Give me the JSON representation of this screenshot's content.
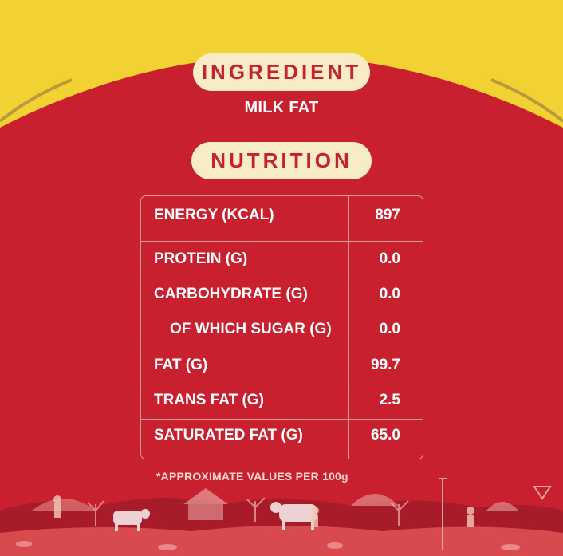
{
  "ingredient": {
    "heading": "INGREDIENT",
    "text": "MILK FAT"
  },
  "nutrition": {
    "heading": "NUTRITION",
    "rows": [
      {
        "label": "ENERGY (KCAL)",
        "value": "897"
      },
      {
        "label": "PROTEIN (G)",
        "value": "0.0"
      },
      {
        "label": "CARBOHYDRATE (G)",
        "value": "0.0"
      },
      {
        "label": "OF WHICH SUGAR (G)",
        "value": "0.0"
      },
      {
        "label": "FAT (G)",
        "value": "99.7"
      },
      {
        "label": "TRANS FAT (G)",
        "value": "2.5"
      },
      {
        "label": "SATURATED FAT (G)",
        "value": "65.0"
      }
    ]
  },
  "footnote": "*APPROXIMATE VALUES PER 100g",
  "colors": {
    "background_red": "#c8202f",
    "border_yellow": "#f2d233",
    "pill_cream": "#f7ecc6",
    "table_border": "#e59a8e"
  }
}
